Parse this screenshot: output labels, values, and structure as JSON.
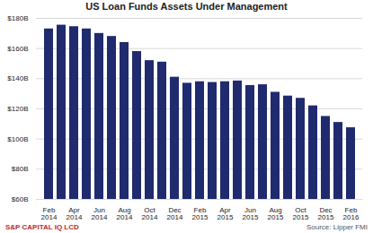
{
  "chart_data": {
    "type": "bar",
    "title": "US Loan Funds Assets Under Management",
    "categories": [
      "Feb 2014",
      null,
      "Apr 2014",
      null,
      "Jun 2014",
      null,
      "Aug 2014",
      null,
      "Oct 2014",
      null,
      "Dec 2014",
      null,
      "Feb 2015",
      null,
      "Apr 2015",
      null,
      "Jun 2015",
      null,
      "Aug 2015",
      null,
      "Oct 2015",
      null,
      "Dec 2015",
      null,
      "Feb 2016"
    ],
    "values": [
      173,
      175.5,
      174.5,
      173,
      170,
      168,
      164,
      158,
      152,
      151,
      141,
      137,
      138,
      137.5,
      138,
      138.5,
      135.5,
      136,
      131,
      128.5,
      127,
      122,
      115,
      111,
      107.5
    ],
    "color": "#1f2b6e",
    "ylim": [
      60,
      180
    ],
    "yticks": [
      {
        "value": 60,
        "label": "$60B"
      },
      {
        "value": 80,
        "label": "$80B"
      },
      {
        "value": 100,
        "label": "$100B"
      },
      {
        "value": 120,
        "label": "$120B"
      },
      {
        "value": 140,
        "label": "$140B"
      },
      {
        "value": 160,
        "label": "$160B"
      },
      {
        "value": 180,
        "label": "$180B"
      }
    ],
    "grid": true,
    "annotations": [
      "S&P CAPITAL IQ LCD",
      "Source: Lipper FMI"
    ]
  }
}
